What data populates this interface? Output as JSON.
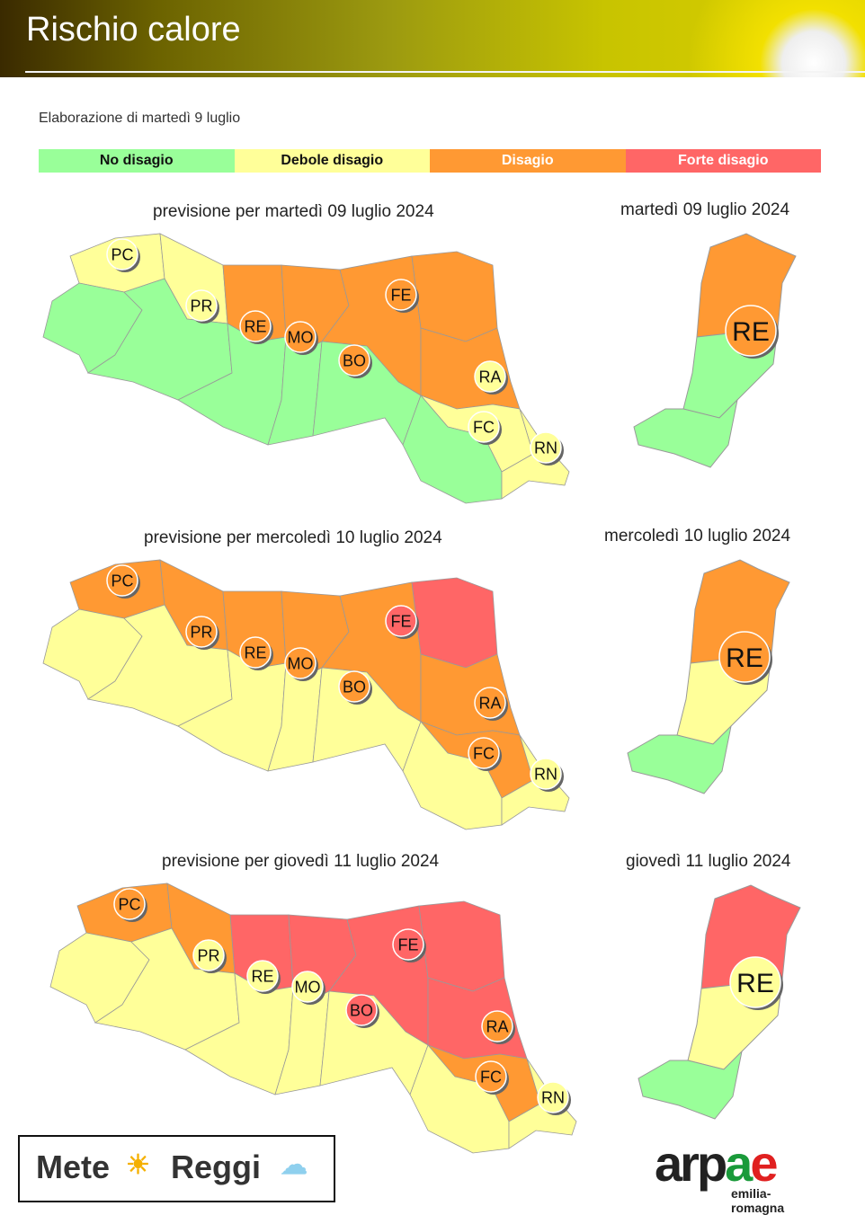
{
  "header": {
    "title": "Rischio calore"
  },
  "subtitle": "Elaborazione di martedì 9 luglio",
  "legend": [
    {
      "label": "No disagio",
      "color": "#99ff99",
      "text": "#111"
    },
    {
      "label": "Debole disagio",
      "color": "#ffff99",
      "text": "#111"
    },
    {
      "label": "Disagio",
      "color": "#ff9933",
      "text": "#fff"
    },
    {
      "label": "Forte disagio",
      "color": "#ff6666",
      "text": "#fff"
    }
  ],
  "maps": [
    {
      "title": "previsione per martedì 09 luglio 2024",
      "detail_title": "martedì 09 luglio 2024",
      "zones": {
        "PC_n": 1,
        "PC_s": 0,
        "PR_n": 1,
        "PR_s": 0,
        "RE_n": 2,
        "RE_s": 0,
        "MO_n": 2,
        "MO_s": 0,
        "BO_n": 2,
        "BO_s": 0,
        "FE": 2,
        "RA": 2,
        "FC_n": 1,
        "FC_s": 0,
        "RN": 1
      },
      "badges": {
        "PC": 1,
        "PR": 1,
        "RE": 2,
        "MO": 2,
        "BO": 2,
        "FE": 2,
        "RA": 1,
        "FC": 1,
        "RN": 1
      },
      "detail": {
        "north": 2,
        "south": 0,
        "tip": 0,
        "badge": 2
      }
    },
    {
      "title": "previsione per mercoledì 10 luglio 2024",
      "detail_title": "mercoledì 10 luglio 2024",
      "zones": {
        "PC_n": 2,
        "PC_s": 1,
        "PR_n": 2,
        "PR_s": 1,
        "RE_n": 2,
        "RE_s": 1,
        "MO_n": 2,
        "MO_s": 1,
        "BO_n": 2,
        "BO_s": 1,
        "FE": 3,
        "RA": 2,
        "FC_n": 2,
        "FC_s": 1,
        "RN": 1
      },
      "badges": {
        "PC": 2,
        "PR": 2,
        "RE": 2,
        "MO": 2,
        "BO": 2,
        "FE": 3,
        "RA": 2,
        "FC": 2,
        "RN": 1
      },
      "detail": {
        "north": 2,
        "south": 1,
        "tip": 0,
        "badge": 2
      }
    },
    {
      "title": "previsione per giovedì 11 luglio 2024",
      "detail_title": "giovedì 11 luglio 2024",
      "zones": {
        "PC_n": 2,
        "PC_s": 1,
        "PR_n": 2,
        "PR_s": 1,
        "RE_n": 3,
        "RE_s": 1,
        "MO_n": 3,
        "MO_s": 1,
        "BO_n": 3,
        "BO_s": 1,
        "FE": 3,
        "RA": 3,
        "FC_n": 2,
        "FC_s": 1,
        "RN": 1
      },
      "badges": {
        "PC": 2,
        "PR": 1,
        "RE": 1,
        "MO": 1,
        "BO": 3,
        "FE": 3,
        "RA": 2,
        "FC": 2,
        "RN": 1
      },
      "detail": {
        "north": 3,
        "south": 1,
        "tip": 0,
        "badge": 1
      }
    }
  ],
  "detail_badge_label": "RE",
  "logos": {
    "meteo_left": "Mete",
    "meteo_right": "Reggi",
    "arpae": "arpae",
    "arpae_sub": "emilia-romagna"
  }
}
